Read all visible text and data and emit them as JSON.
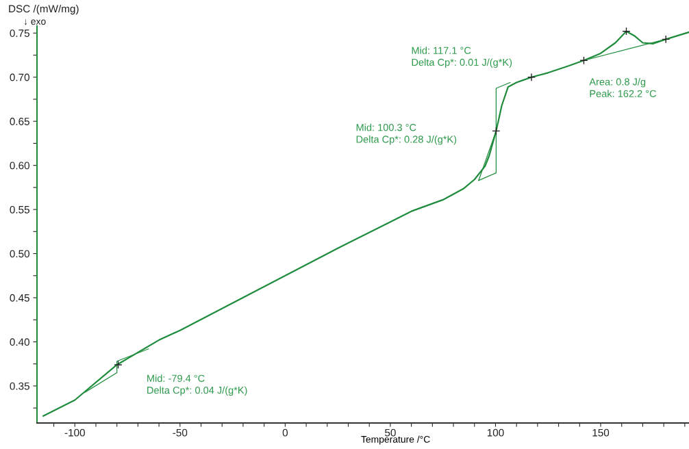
{
  "chart_data": {
    "type": "line",
    "ylabel": "DSC /(mW/mg)",
    "xlabel": "Temperature /°C",
    "xlim": [
      -118,
      192
    ],
    "ylim": [
      0.308,
      0.758
    ],
    "xticks": [
      {
        "value": -110,
        "label": null
      },
      -100,
      {
        "value": -90,
        "label": null
      },
      {
        "value": -80,
        "label": null
      },
      {
        "value": -70,
        "label": null
      },
      {
        "value": -60,
        "label": null
      },
      -50,
      {
        "value": -40,
        "label": null
      },
      {
        "value": -30,
        "label": null
      },
      {
        "value": -20,
        "label": null
      },
      {
        "value": -10,
        "label": null
      },
      0,
      {
        "value": 10,
        "label": null
      },
      {
        "value": 20,
        "label": null
      },
      {
        "value": 30,
        "label": null
      },
      {
        "value": 40,
        "label": null
      },
      50,
      {
        "value": 60,
        "label": null
      },
      {
        "value": 70,
        "label": null
      },
      {
        "value": 80,
        "label": null
      },
      {
        "value": 90,
        "label": null
      },
      100,
      {
        "value": 110,
        "label": null
      },
      {
        "value": 120,
        "label": null
      },
      {
        "value": 130,
        "label": null
      },
      {
        "value": 140,
        "label": null
      },
      150,
      {
        "value": 160,
        "label": null
      },
      {
        "value": 170,
        "label": null
      },
      {
        "value": 180,
        "label": null
      },
      {
        "value": 190,
        "label": null
      }
    ],
    "yticks": [
      {
        "value": 0.325,
        "label": null
      },
      {
        "value": 0.35,
        "label": "0.35"
      },
      {
        "value": 0.375,
        "label": null
      },
      {
        "value": 0.4,
        "label": "0.40"
      },
      {
        "value": 0.425,
        "label": null
      },
      {
        "value": 0.45,
        "label": "0.45"
      },
      {
        "value": 0.475,
        "label": null
      },
      {
        "value": 0.5,
        "label": "0.50"
      },
      {
        "value": 0.525,
        "label": null
      },
      {
        "value": 0.55,
        "label": "0.55"
      },
      {
        "value": 0.575,
        "label": null
      },
      {
        "value": 0.6,
        "label": "0.60"
      },
      {
        "value": 0.625,
        "label": null
      },
      {
        "value": 0.65,
        "label": "0.65"
      },
      {
        "value": 0.675,
        "label": null
      },
      {
        "value": 0.7,
        "label": "0.70"
      },
      {
        "value": 0.725,
        "label": null
      },
      {
        "value": 0.75,
        "label": "0.75"
      }
    ],
    "grid": false,
    "legend": false,
    "series": [
      {
        "color": "#1e8c3c",
        "x": [
          -115,
          -100,
          -80,
          -70,
          -60,
          -50,
          -25,
          0,
          25,
          50,
          60,
          75,
          85,
          90,
          95,
          97,
          100.3,
          103,
          106,
          110,
          117.1,
          125,
          135,
          142,
          150,
          157,
          162.2,
          166,
          170,
          175,
          181,
          192
        ],
        "values": [
          0.316,
          0.334,
          0.374,
          0.388,
          0.402,
          0.413,
          0.444,
          0.475,
          0.506,
          0.536,
          0.548,
          0.561,
          0.574,
          0.584,
          0.599,
          0.611,
          0.639,
          0.668,
          0.689,
          0.694,
          0.7,
          0.705,
          0.713,
          0.719,
          0.727,
          0.739,
          0.752,
          0.747,
          0.739,
          0.738,
          0.743,
          0.751
        ]
      },
      {
        "color": "#1e8c3c",
        "x": [
          142,
          181
        ],
        "values": [
          0.719,
          0.743
        ]
      },
      {
        "color": "#1e8c3c",
        "x": [
          92,
          100.3,
          100.3,
          107
        ],
        "values": [
          0.583,
          0.5915,
          0.6874,
          0.694
        ]
      },
      {
        "color": "#1e8c3c",
        "x": [
          92,
          100.3
        ],
        "values": [
          0.583,
          0.639
        ]
      },
      {
        "color": "#1e8c3c",
        "x": [
          -95,
          -80,
          -80,
          -65
        ],
        "values": [
          0.343,
          0.365,
          0.378,
          0.392
        ]
      },
      {
        "type": "scatter",
        "marker": "cross",
        "color": "#222222",
        "x": [
          -79.4,
          100.3,
          117.1,
          142,
          162.2,
          181
        ],
        "values": [
          0.374,
          0.639,
          0.7,
          0.719,
          0.752,
          0.743
        ]
      }
    ],
    "annotations": [
      "Mid: -79.4 °C\nDelta Cp*: 0.04 J/(g*K)",
      "Mid: 100.3 °C\nDelta Cp*: 0.28 J/(g*K)",
      "Mid: 117.1 °C\nDelta Cp*: 0.01 J/(g*K)",
      "Area: 0.8 J/g\nPeak: 162.2 °C",
      "↓ exo"
    ]
  }
}
